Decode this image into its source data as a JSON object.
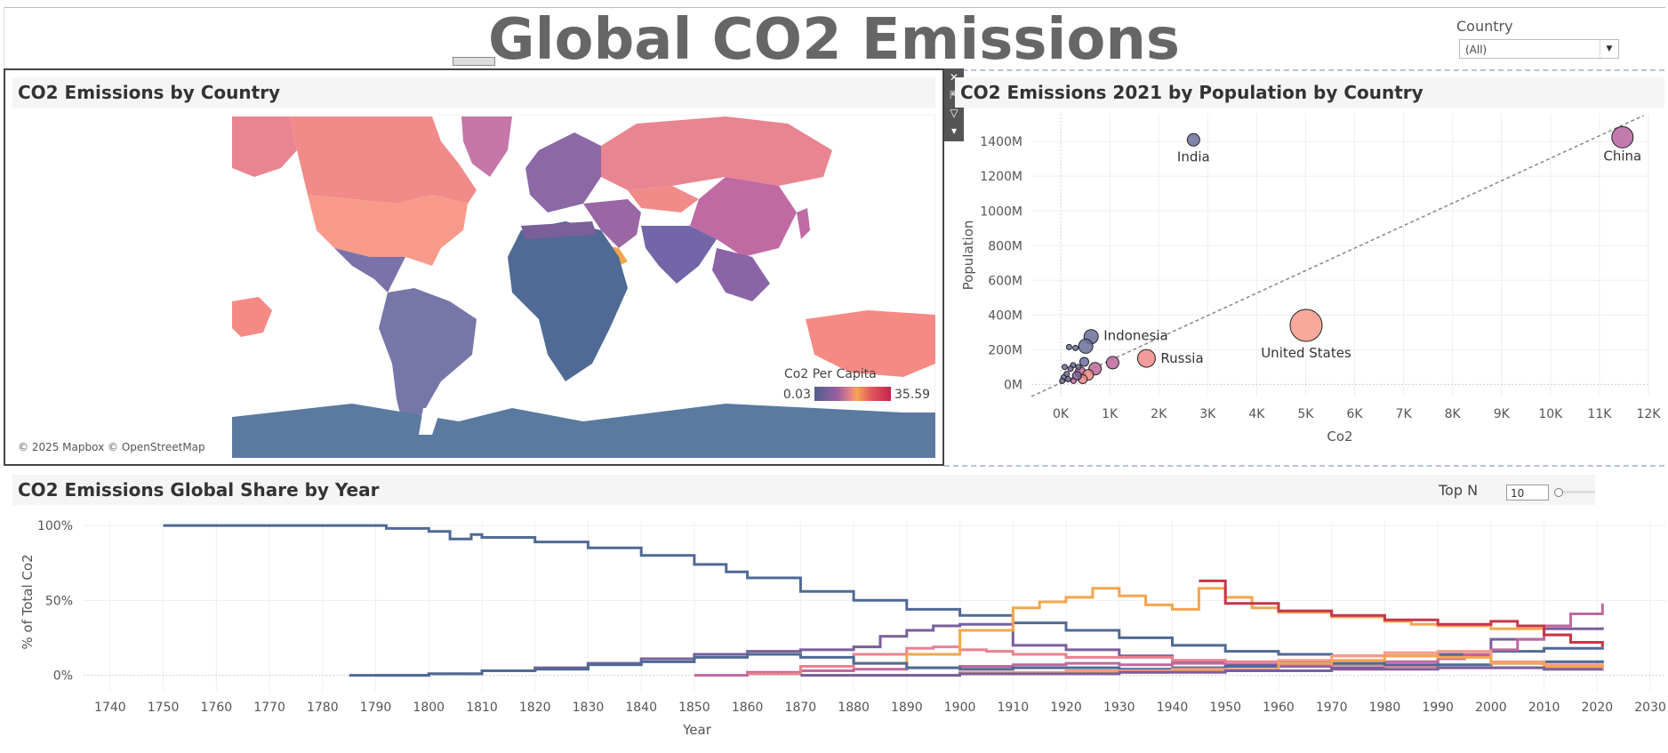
{
  "dashboard": {
    "title": "Global CO2 Emissions"
  },
  "country_filter": {
    "label": "Country",
    "value": "(All)"
  },
  "map_panel": {
    "title": "CO2 Emissions by Country",
    "attribution": "© 2025 Mapbox © OpenStreetMap",
    "legend": {
      "title": "Co2 Per Capita",
      "min": "0.03",
      "max": "35.59"
    },
    "tools": [
      "close-icon",
      "pop-out-icon",
      "filter-icon",
      "more-icon"
    ]
  },
  "scatter_panel": {
    "title": "CO2 Emissions 2021 by Population by Country"
  },
  "share_panel": {
    "title": "CO2 Emissions Global Share by Year",
    "topn": {
      "label": "Top N",
      "value": "10"
    }
  },
  "colors": {
    "title": "#666666",
    "low": "#4f6a95",
    "mid_purple": "#7a5f9a",
    "magenta": "#c0689e",
    "pink": "#e9808f",
    "salmon": "#f89a8a",
    "orange": "#f5a54f",
    "red": "#c7354a"
  },
  "chart_data": [
    {
      "type": "scatter",
      "title": "CO2 Emissions 2021 by Population by Country",
      "xlabel": "Co2",
      "ylabel": "Population",
      "x_ticks": [
        "0K",
        "1K",
        "2K",
        "3K",
        "4K",
        "5K",
        "6K",
        "7K",
        "8K",
        "9K",
        "10K",
        "11K",
        "12K"
      ],
      "y_ticks": [
        "0M",
        "200M",
        "400M",
        "600M",
        "800M",
        "1000M",
        "1200M",
        "1400M"
      ],
      "xlim": [
        -600,
        12000
      ],
      "ylim": [
        -70,
        1560
      ],
      "trend_line": [
        [
          -600,
          -70
        ],
        [
          11900,
          1550
        ]
      ],
      "points": [
        {
          "label": "China",
          "x": 11470,
          "y": 1425,
          "size": 12,
          "color": "#b664a0"
        },
        {
          "label": "India",
          "x": 2710,
          "y": 1410,
          "size": 7,
          "color": "#6a6f9c"
        },
        {
          "label": "United States",
          "x": 5010,
          "y": 340,
          "size": 18,
          "color": "#f89a8a"
        },
        {
          "label": "Russia",
          "x": 1750,
          "y": 150,
          "size": 10,
          "color": "#f08a8a"
        },
        {
          "label": "Indonesia",
          "x": 620,
          "y": 275,
          "size": 8,
          "color": "#6a6f9c"
        },
        {
          "label": "",
          "x": 510,
          "y": 220,
          "size": 8,
          "color": "#6a6f9c"
        },
        {
          "label": "",
          "x": 1060,
          "y": 125,
          "size": 7,
          "color": "#c0689e"
        },
        {
          "label": "",
          "x": 700,
          "y": 90,
          "size": 7,
          "color": "#c0689e"
        },
        {
          "label": "",
          "x": 480,
          "y": 130,
          "size": 5,
          "color": "#6a6f9c"
        },
        {
          "label": "",
          "x": 400,
          "y": 70,
          "size": 6,
          "color": "#c0689e"
        },
        {
          "label": "",
          "x": 560,
          "y": 55,
          "size": 6,
          "color": "#f08a8a"
        },
        {
          "label": "",
          "x": 450,
          "y": 30,
          "size": 5,
          "color": "#f08a8a"
        },
        {
          "label": "",
          "x": 330,
          "y": 50,
          "size": 5,
          "color": "#7a5f9a"
        },
        {
          "label": "",
          "x": 300,
          "y": 210,
          "size": 3,
          "color": "#6a6f9c"
        },
        {
          "label": "",
          "x": 170,
          "y": 215,
          "size": 3,
          "color": "#6a6f9c"
        },
        {
          "label": "",
          "x": 250,
          "y": 110,
          "size": 3,
          "color": "#6a6f9c"
        },
        {
          "label": "",
          "x": 200,
          "y": 90,
          "size": 3,
          "color": "#7a5f9a"
        },
        {
          "label": "",
          "x": 120,
          "y": 60,
          "size": 3,
          "color": "#6a6f9c"
        },
        {
          "label": "",
          "x": 80,
          "y": 100,
          "size": 3,
          "color": "#6a6f9c"
        },
        {
          "label": "",
          "x": 60,
          "y": 40,
          "size": 3,
          "color": "#6a6f9c"
        },
        {
          "label": "",
          "x": 30,
          "y": 20,
          "size": 3,
          "color": "#6a6f9c"
        },
        {
          "label": "",
          "x": 150,
          "y": 30,
          "size": 3,
          "color": "#7a5f9a"
        },
        {
          "label": "",
          "x": 260,
          "y": 20,
          "size": 3,
          "color": "#c0689e"
        },
        {
          "label": "",
          "x": 360,
          "y": 100,
          "size": 3,
          "color": "#6a6f9c"
        }
      ]
    },
    {
      "type": "line",
      "title": "CO2 Emissions Global Share by Year",
      "xlabel": "Year",
      "ylabel": "% of Total Co2",
      "x_ticks": [
        "1740",
        "1750",
        "1760",
        "1770",
        "1780",
        "1790",
        "1800",
        "1810",
        "1820",
        "1830",
        "1840",
        "1850",
        "1860",
        "1870",
        "1880",
        "1890",
        "1900",
        "1910",
        "1920",
        "1930",
        "1940",
        "1950",
        "1960",
        "1970",
        "1980",
        "1990",
        "2000",
        "2010",
        "2020",
        "2030"
      ],
      "y_ticks": [
        "0%",
        "50%",
        "100%"
      ],
      "xlim": [
        1735,
        2033
      ],
      "ylim": [
        -5,
        103
      ],
      "series": [
        {
          "color": "#4f6a95",
          "points": [
            [
              1750,
              100
            ],
            [
              1790,
              100
            ],
            [
              1792,
              98
            ],
            [
              1800,
              96
            ],
            [
              1804,
              91
            ],
            [
              1808,
              94
            ],
            [
              1810,
              92
            ],
            [
              1820,
              89
            ],
            [
              1830,
              85
            ],
            [
              1840,
              80
            ],
            [
              1850,
              74
            ],
            [
              1856,
              69
            ],
            [
              1860,
              65
            ],
            [
              1870,
              56
            ],
            [
              1880,
              50
            ],
            [
              1890,
              44
            ],
            [
              1900,
              40
            ],
            [
              1910,
              35
            ],
            [
              1920,
              30
            ],
            [
              1930,
              25
            ],
            [
              1940,
              20
            ],
            [
              1950,
              16
            ],
            [
              1960,
              14
            ],
            [
              1970,
              13
            ],
            [
              1980,
              13
            ],
            [
              1990,
              14
            ],
            [
              2000,
              16
            ],
            [
              2010,
              18
            ],
            [
              2021,
              19
            ]
          ]
        },
        {
          "color": "#7a5f9a",
          "points": [
            [
              1790,
              0
            ],
            [
              1800,
              1
            ],
            [
              1810,
              3
            ],
            [
              1820,
              5
            ],
            [
              1830,
              8
            ],
            [
              1840,
              11
            ],
            [
              1850,
              14
            ],
            [
              1860,
              16
            ],
            [
              1870,
              17
            ],
            [
              1880,
              19
            ],
            [
              1885,
              26
            ],
            [
              1890,
              30
            ],
            [
              1895,
              33
            ],
            [
              1900,
              34
            ],
            [
              1910,
              20
            ],
            [
              1920,
              17
            ],
            [
              1930,
              13
            ],
            [
              1940,
              9
            ],
            [
              1950,
              7
            ],
            [
              1960,
              6
            ],
            [
              1970,
              5
            ],
            [
              1980,
              6
            ],
            [
              1990,
              13
            ],
            [
              2000,
              24
            ],
            [
              2010,
              31
            ],
            [
              2021,
              32
            ]
          ]
        },
        {
          "color": "#c0689e",
          "points": [
            [
              1850,
              0
            ],
            [
              1860,
              2
            ],
            [
              1870,
              3
            ],
            [
              1880,
              4
            ],
            [
              1890,
              5
            ],
            [
              1900,
              6
            ],
            [
              1910,
              7
            ],
            [
              1920,
              8
            ],
            [
              1930,
              7
            ],
            [
              1940,
              8
            ],
            [
              1950,
              6
            ],
            [
              1960,
              7
            ],
            [
              1970,
              8
            ],
            [
              1980,
              9
            ],
            [
              1990,
              11
            ],
            [
              1995,
              14
            ],
            [
              2000,
              17
            ],
            [
              2005,
              24
            ],
            [
              2010,
              33
            ],
            [
              2015,
              41
            ],
            [
              2021,
              48
            ]
          ]
        },
        {
          "color": "#e9808f",
          "points": [
            [
              1860,
              1
            ],
            [
              1870,
              6
            ],
            [
              1880,
              14
            ],
            [
              1890,
              18
            ],
            [
              1895,
              19
            ],
            [
              1900,
              17
            ],
            [
              1905,
              16
            ],
            [
              1910,
              14
            ],
            [
              1920,
              12
            ],
            [
              1930,
              12
            ],
            [
              1940,
              10
            ],
            [
              1950,
              9
            ],
            [
              1960,
              8
            ],
            [
              1970,
              7
            ],
            [
              1980,
              6
            ],
            [
              1990,
              5
            ],
            [
              2000,
              5
            ],
            [
              2010,
              4
            ],
            [
              2021,
              3
            ]
          ]
        },
        {
          "color": "#f5a54f",
          "points": [
            [
              1880,
              8
            ],
            [
              1890,
              14
            ],
            [
              1900,
              30
            ],
            [
              1910,
              45
            ],
            [
              1915,
              49
            ],
            [
              1920,
              52
            ],
            [
              1925,
              58
            ],
            [
              1930,
              53
            ],
            [
              1935,
              47
            ],
            [
              1940,
              44
            ],
            [
              1945,
              58
            ],
            [
              1950,
              52
            ],
            [
              1955,
              45
            ],
            [
              1960,
              42
            ],
            [
              1970,
              39
            ],
            [
              1980,
              36
            ],
            [
              1985,
              34
            ],
            [
              1990,
              33
            ],
            [
              2000,
              31
            ],
            [
              2010,
              27
            ],
            [
              2015,
              22
            ],
            [
              2021,
              20
            ]
          ]
        },
        {
          "color": "#c7354a",
          "points": [
            [
              1945,
              63
            ],
            [
              1950,
              48
            ],
            [
              1960,
              43
            ],
            [
              1970,
              40
            ],
            [
              1980,
              37
            ],
            [
              1990,
              34
            ],
            [
              2000,
              36
            ],
            [
              2005,
              33
            ],
            [
              2010,
              27
            ],
            [
              2015,
              22
            ],
            [
              2021,
              19
            ]
          ]
        },
        {
          "color": "#4f6a95",
          "points": [
            [
              1785,
              0
            ],
            [
              1800,
              1
            ],
            [
              1810,
              3
            ],
            [
              1820,
              4
            ],
            [
              1830,
              7
            ],
            [
              1840,
              9
            ],
            [
              1850,
              12
            ],
            [
              1860,
              14
            ],
            [
              1870,
              12
            ],
            [
              1880,
              8
            ],
            [
              1890,
              5
            ],
            [
              1900,
              4
            ],
            [
              1910,
              5
            ],
            [
              1920,
              5
            ],
            [
              1930,
              4
            ],
            [
              1940,
              5
            ],
            [
              1950,
              6
            ],
            [
              1960,
              9
            ],
            [
              1970,
              8
            ],
            [
              1980,
              7
            ],
            [
              1990,
              7
            ],
            [
              2000,
              8
            ],
            [
              2010,
              9
            ],
            [
              2021,
              10
            ]
          ]
        },
        {
          "color": "#f89a8a",
          "points": [
            [
              1870,
              0
            ],
            [
              1900,
              2
            ],
            [
              1920,
              3
            ],
            [
              1940,
              4
            ],
            [
              1960,
              10
            ],
            [
              1970,
              13
            ],
            [
              1980,
              15
            ],
            [
              1990,
              16
            ],
            [
              2000,
              9
            ],
            [
              2010,
              7
            ],
            [
              2021,
              6
            ]
          ]
        },
        {
          "color": "#f5a54f",
          "points": [
            [
              1900,
              1
            ],
            [
              1920,
              2
            ],
            [
              1940,
              3
            ],
            [
              1960,
              8
            ],
            [
              1970,
              10
            ],
            [
              1980,
              13
            ],
            [
              1990,
              12
            ],
            [
              2000,
              8
            ],
            [
              2010,
              6
            ],
            [
              2021,
              5
            ]
          ]
        },
        {
          "color": "#7a5f9a",
          "points": [
            [
              1870,
              0
            ],
            [
              1900,
              1
            ],
            [
              1930,
              2
            ],
            [
              1950,
              3
            ],
            [
              1970,
              4
            ],
            [
              1990,
              5
            ],
            [
              2000,
              5
            ],
            [
              2010,
              4
            ],
            [
              2021,
              4
            ]
          ]
        }
      ]
    }
  ]
}
